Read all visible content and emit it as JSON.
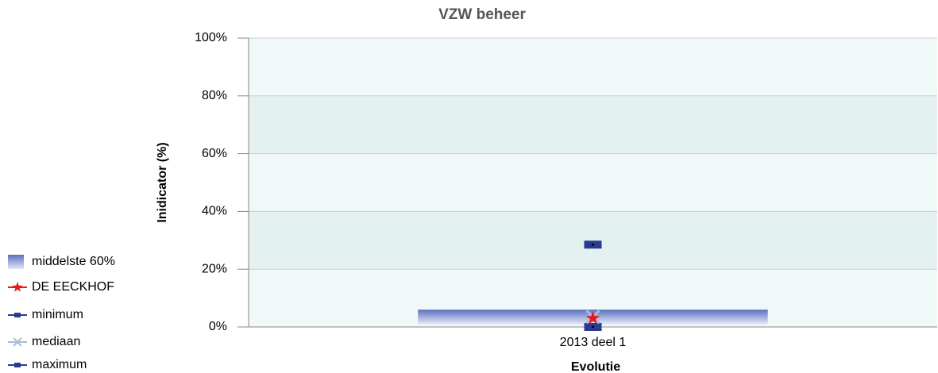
{
  "chart_data": {
    "type": "bar",
    "title": "VZW beheer",
    "y_label": "Inidicator (%)",
    "x_label": "Evolutie",
    "categories": [
      "2013 deel 1"
    ],
    "series": [
      {
        "name": "middelste 60%",
        "color": "#5b6fc0",
        "marker": "range",
        "values": [
          [
            1,
            6
          ]
        ]
      },
      {
        "name": "DE EECKHOF",
        "color": "#e8191c",
        "marker": "star",
        "values": [
          3
        ]
      },
      {
        "name": "minimum",
        "color": "#2b3a8f",
        "marker": "square",
        "values": [
          0
        ]
      },
      {
        "name": "mediaan",
        "color": "#a9bdd8",
        "marker": "x",
        "values": [
          3.5
        ]
      },
      {
        "name": "maximum",
        "color": "#2b3a8f",
        "marker": "square",
        "values": [
          28.5
        ]
      }
    ],
    "ylim": [
      0,
      100
    ],
    "yticks": [
      {
        "value": 0,
        "label": "0%"
      },
      {
        "value": 20,
        "label": "20%"
      },
      {
        "value": 40,
        "label": "40%"
      },
      {
        "value": 60,
        "label": "60%"
      },
      {
        "value": 80,
        "label": "80%"
      },
      {
        "value": 100,
        "label": "100%"
      }
    ],
    "grid": true,
    "legend": "left"
  }
}
